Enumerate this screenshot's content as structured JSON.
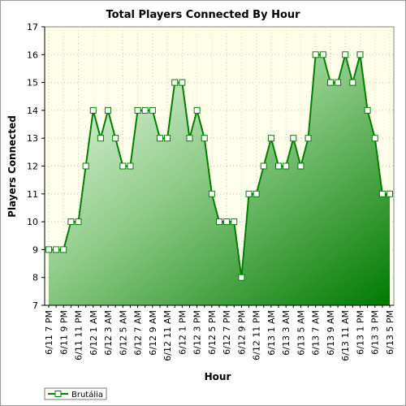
{
  "chart_data": {
    "type": "area",
    "title": "Total Players Connected By Hour",
    "xlabel": "Hour",
    "ylabel": "Players Connected",
    "ylim": [
      7,
      17
    ],
    "y_ticks": [
      7,
      8,
      9,
      10,
      11,
      12,
      13,
      14,
      15,
      16,
      17
    ],
    "grid": true,
    "legend_position": "bottom-left",
    "x": [
      "6/11 7 PM",
      "6/11 8 PM",
      "6/11 9 PM",
      "6/11 10 PM",
      "6/11 11 PM",
      "6/12 12 AM",
      "6/12 1 AM",
      "6/12 2 AM",
      "6/12 3 AM",
      "6/12 4 AM",
      "6/12 5 AM",
      "6/12 6 AM",
      "6/12 7 AM",
      "6/12 8 AM",
      "6/12 9 AM",
      "6/12 10 AM",
      "6/12 11 AM",
      "6/12 12 PM",
      "6/12 1 PM",
      "6/12 2 PM",
      "6/12 3 PM",
      "6/12 4 PM",
      "6/12 5 PM",
      "6/12 6 PM",
      "6/12 7 PM",
      "6/12 8 PM",
      "6/12 9 PM",
      "6/12 10 PM",
      "6/12 11 PM",
      "6/13 12 AM",
      "6/13 1 AM",
      "6/13 2 AM",
      "6/13 3 AM",
      "6/13 4 AM",
      "6/13 5 AM",
      "6/13 6 AM",
      "6/13 7 AM",
      "6/13 8 AM",
      "6/13 9 AM",
      "6/13 10 AM",
      "6/13 11 AM",
      "6/13 12 PM",
      "6/13 1 PM",
      "6/13 2 PM",
      "6/13 3 PM",
      "6/13 4 PM",
      "6/13 5 PM"
    ],
    "x_tick_labels": [
      "6/11 7 PM",
      "6/11 9 PM",
      "6/11 11 PM",
      "6/12 1 AM",
      "6/12 3 AM",
      "6/12 5 AM",
      "6/12 7 AM",
      "6/12 9 AM",
      "6/12 11 AM",
      "6/12 1 PM",
      "6/12 3 PM",
      "6/12 5 PM",
      "6/12 7 PM",
      "6/12 9 PM",
      "6/12 11 PM",
      "6/13 1 AM",
      "6/13 3 AM",
      "6/13 5 AM",
      "6/13 7 AM",
      "6/13 9 AM",
      "6/13 11 AM",
      "6/13 1 PM",
      "6/13 3 PM",
      "6/13 5 PM"
    ],
    "series": [
      {
        "name": "Brutália",
        "values": [
          9,
          9,
          9,
          10,
          10,
          12,
          14,
          13,
          14,
          13,
          12,
          12,
          14,
          14,
          14,
          13,
          13,
          15,
          15,
          13,
          14,
          13,
          11,
          10,
          10,
          10,
          8,
          11,
          11,
          12,
          13,
          12,
          12,
          13,
          12,
          13,
          16,
          16,
          15,
          15,
          16,
          15,
          16,
          14,
          13,
          11,
          11
        ]
      }
    ],
    "colors": {
      "line": "#008000",
      "marker_fill": "#ffffff",
      "area_light": "#e8f5e4",
      "area_dark": "#007a00",
      "plot_bg_top": "#ffffe6",
      "plot_bg_bottom": "#ffffcc",
      "grid": "#c8c8a0"
    }
  }
}
